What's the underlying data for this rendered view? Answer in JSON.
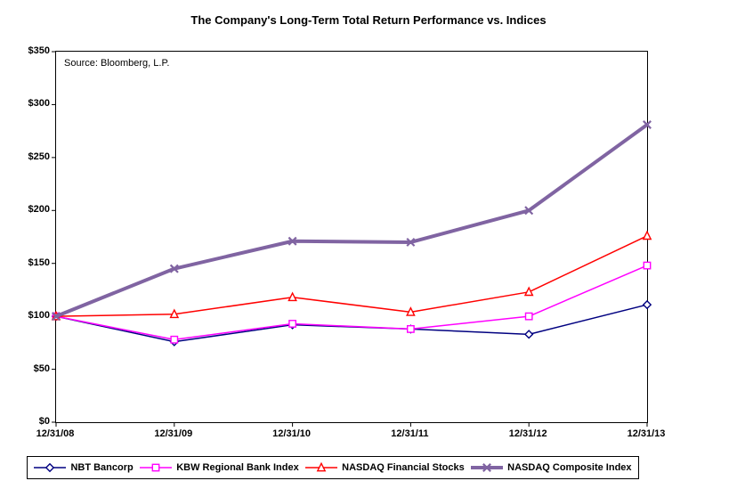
{
  "title": "The Company's Long-Term Total Return Performance vs. Indices",
  "source_note": "Source:  Bloomberg, L.P.",
  "chart_data": {
    "type": "line",
    "title": "The Company's Long-Term Total Return Performance vs. Indices",
    "categories": [
      "12/31/08",
      "12/31/09",
      "12/31/10",
      "12/31/11",
      "12/31/12",
      "12/31/13"
    ],
    "series": [
      {
        "name": "NBT Bancorp",
        "color": "#000080",
        "marker": "diamond",
        "line_width": 1.5,
        "values": [
          100,
          76,
          92,
          88,
          83,
          111
        ]
      },
      {
        "name": "KBW Regional Bank Index",
        "color": "#FF00FF",
        "marker": "square",
        "line_width": 1.5,
        "values": [
          100,
          78,
          93,
          88,
          100,
          148
        ]
      },
      {
        "name": "NASDAQ Financial Stocks",
        "color": "#FF0000",
        "marker": "triangle",
        "line_width": 1.5,
        "values": [
          100,
          102,
          118,
          104,
          123,
          176
        ]
      },
      {
        "name": "NASDAQ Composite Index",
        "color": "#8064A2",
        "marker": "x",
        "line_width": 4,
        "values": [
          100,
          145,
          171,
          170,
          200,
          281
        ]
      }
    ],
    "ylim": [
      0,
      350
    ],
    "ytick_step": 50,
    "ytick_labels": [
      "$0",
      "$50",
      "$100",
      "$150",
      "$200",
      "$250",
      "$300",
      "$350"
    ],
    "grid": false,
    "legend_position": "bottom",
    "annotations": [
      "Source:  Bloomberg, L.P."
    ]
  }
}
